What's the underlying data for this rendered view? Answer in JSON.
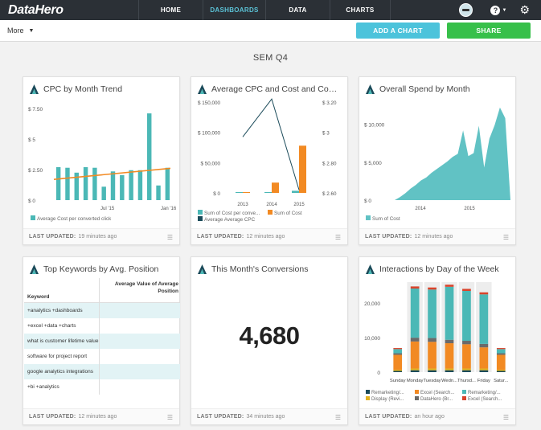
{
  "app": {
    "logo": "DataHero"
  },
  "nav": {
    "tabs": [
      "HOME",
      "DASHBOARDS",
      "DATA",
      "CHARTS"
    ],
    "active": "DASHBOARDS",
    "help": "?"
  },
  "toolbar": {
    "more": "More",
    "add_chart": "ADD A CHART",
    "share": "SHARE"
  },
  "dashboard": {
    "title": "SEM Q4"
  },
  "footer_label": "LAST UPDATED:",
  "cards": [
    {
      "title": "CPC by Month Trend",
      "updated": "19 minutes ago",
      "chart_data": {
        "type": "bar",
        "y_ticks": [
          "$ 7.50",
          "$ 5",
          "$ 2.50",
          "$ 0"
        ],
        "ylim": [
          0,
          7.5
        ],
        "x_ticks": [
          "Jul '15",
          "Jan '16"
        ],
        "values": [
          2.7,
          2.65,
          2.25,
          2.7,
          2.65,
          1.1,
          2.35,
          2.05,
          2.45,
          2.45,
          7.1,
          1.2,
          2.65
        ],
        "trend": [
          1.7,
          2.6
        ],
        "legend": [
          "Average Cost per converted click"
        ],
        "colors": {
          "bar": "#4bb8b6",
          "trend": "#f28a23"
        }
      }
    },
    {
      "title": "Average CPC and Cost and Cost...",
      "updated": "12 minutes ago",
      "chart_data": {
        "type": "bar",
        "categories": [
          "2013",
          "2014",
          "2015"
        ],
        "y_left_ticks": [
          "$ 150,000",
          "$ 100,000",
          "$ 50,000",
          "$ 0"
        ],
        "ylim_left": [
          0,
          150000
        ],
        "y_right_ticks": [
          "$ 3.20",
          "$ 3",
          "$ 2.80",
          "$ 2.60"
        ],
        "ylim_right": [
          2.6,
          3.2
        ],
        "series": [
          {
            "name": "Sum of Cost per conve...",
            "values": [
              200,
              800,
              3500
            ]
          },
          {
            "name": "Sum of Cost",
            "values": [
              200,
              17000,
              78000
            ]
          },
          {
            "name": "Average Average CPC",
            "values": [
              2.97,
              3.22,
              2.62
            ]
          }
        ],
        "colors": [
          "#4bb8b6",
          "#f28a23",
          "#1b4b5a"
        ]
      }
    },
    {
      "title": "Overall Spend by Month",
      "updated": "12 minutes ago",
      "chart_data": {
        "type": "area",
        "y_ticks": [
          "$ 10,000",
          "$ 5,000",
          "$ 0"
        ],
        "ylim": [
          0,
          12500
        ],
        "x_ticks": [
          "2014",
          "2015"
        ],
        "values": [
          0,
          400,
          900,
          1500,
          2000,
          2600,
          3000,
          3600,
          4100,
          4600,
          5100,
          5700,
          6100,
          9200,
          5800,
          6200,
          9800,
          4300,
          8100,
          9900,
          12200,
          10800,
          0
        ],
        "legend": [
          "Sum of Cost"
        ],
        "colors": {
          "area": "#61c2c4"
        }
      }
    },
    {
      "title": "Top Keywords by Avg. Position",
      "updated": "12 minutes ago",
      "table": {
        "headers": [
          "Keyword",
          "Average Value of Average Position"
        ],
        "rows": [
          "+analytics +dashboards",
          "+excel +data +charts",
          "what is customer lifetime value",
          "software for project report",
          "google analytics integrations",
          "+bi +analytics"
        ]
      }
    },
    {
      "title": "This Month's Conversions",
      "updated": "34 minutes ago",
      "value": "4,680"
    },
    {
      "title": "Interactions by Day of the Week",
      "updated": "an hour ago",
      "chart_data": {
        "type": "bar",
        "stacked": true,
        "categories": [
          "Sunday",
          "Monday",
          "Tuesday",
          "Wedn...",
          "Thursd...",
          "Friday",
          "Satur..."
        ],
        "y_ticks": [
          "20,000",
          "10,000",
          "0"
        ],
        "ylim": [
          0,
          26000
        ],
        "series": [
          {
            "name": "Remarketing/...",
            "values": [
              350,
              550,
              550,
              550,
              550,
              550,
              350
            ]
          },
          {
            "name": "Display (Revi...",
            "values": [
              350,
              500,
              500,
              500,
              500,
              500,
              350
            ]
          },
          {
            "name": "Excel (Search...",
            "values": [
              4300,
              7800,
              7700,
              7300,
              7000,
              6100,
              4300
            ]
          },
          {
            "name": "DataHero (Br...",
            "values": [
              450,
              1100,
              1100,
              1000,
              1000,
              1000,
              450
            ]
          },
          {
            "name": "Remarketing/...",
            "values": [
              1200,
              14200,
              14000,
              15300,
              14400,
              14300,
              1200
            ]
          },
          {
            "name": "Excel (Search...",
            "values": [
              300,
              600,
              600,
              600,
              600,
              600,
              300
            ]
          }
        ],
        "colors": [
          "#1b4b5a",
          "#e3b321",
          "#f28a23",
          "#6a6a6a",
          "#4bb8b6",
          "#d9432b"
        ]
      }
    }
  ]
}
